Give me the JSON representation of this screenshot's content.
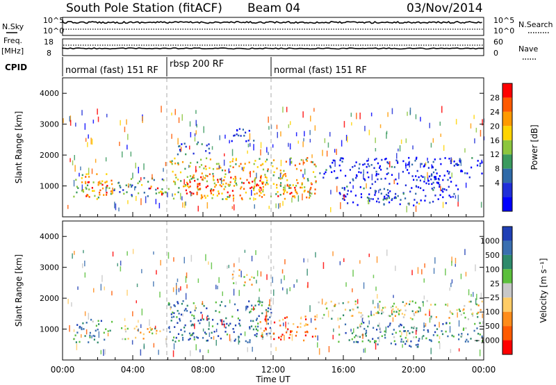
{
  "header": {
    "station": "South Pole Station (fitACF)",
    "beam": "Beam 04",
    "date": "03/Nov/2014"
  },
  "top_panels": {
    "nsky_label": "N.Sky",
    "nsky_ticks": [
      "10^5",
      "10^0"
    ],
    "nsearch_label": "N.Search",
    "nsearch_ticks": [
      "10^5",
      "10^0"
    ],
    "freq_label": "Freq.",
    "freq_unit": "[MHz]",
    "freq_ticks": [
      "18",
      "8"
    ],
    "nave_label": "Nave",
    "nave_ticks": [
      "60",
      "0"
    ],
    "cpid_label": "CPID",
    "cpid_segments": [
      {
        "label": "normal (fast) 151 RF",
        "start": 0,
        "end": 6
      },
      {
        "label": "rbsp 200 RF",
        "start": 6,
        "end": 12
      },
      {
        "label": "normal (fast) 151 RF",
        "start": 12,
        "end": 24
      }
    ]
  },
  "chart_data": [
    {
      "type": "heatmap",
      "name": "power",
      "ylabel": "Slant Range [km]",
      "yticks": [
        "1000",
        "2000",
        "3000",
        "4000"
      ],
      "ylim": [
        0,
        4500
      ],
      "xlim": [
        0,
        24
      ],
      "colorbar_label": "Power [dB]",
      "colorbar_ticks": [
        "28",
        "24",
        "20",
        "16",
        "12",
        "8",
        "4"
      ],
      "colorbar_colors": [
        "#ff0000",
        "#ff5a00",
        "#ff9a00",
        "#ffd400",
        "#8cc63e",
        "#3a9a5e",
        "#2f6aa8",
        "#1f2ed8",
        "#0000ff"
      ],
      "blobs": [
        {
          "x0": 0.6,
          "x1": 2.8,
          "y0": 550,
          "y1": 1400,
          "level": 0.6
        },
        {
          "x0": 1.0,
          "x1": 2.6,
          "y0": 650,
          "y1": 1150,
          "level": 0.85
        },
        {
          "x0": 2.8,
          "x1": 5.9,
          "y0": 650,
          "y1": 1250,
          "level": 0.35
        },
        {
          "x0": 4.8,
          "x1": 5.8,
          "y0": 700,
          "y1": 1000,
          "level": 0.8
        },
        {
          "x0": 6.0,
          "x1": 14.4,
          "y0": 550,
          "y1": 1900,
          "level": 0.6
        },
        {
          "x0": 7.0,
          "x1": 11.5,
          "y0": 650,
          "y1": 1300,
          "level": 0.9
        },
        {
          "x0": 12.2,
          "x1": 14.4,
          "y0": 600,
          "y1": 1200,
          "level": 0.75
        },
        {
          "x0": 14.5,
          "x1": 23.9,
          "y0": 1250,
          "y1": 1900,
          "level": 0.12
        },
        {
          "x0": 15.5,
          "x1": 22.5,
          "y0": 350,
          "y1": 1250,
          "level": 0.15
        },
        {
          "x0": 17.3,
          "x1": 18.5,
          "y0": 400,
          "y1": 600,
          "level": 0.45
        },
        {
          "x0": 19.3,
          "x1": 20.3,
          "y0": 400,
          "y1": 600,
          "level": 0.45
        },
        {
          "x0": 9.5,
          "x1": 10.9,
          "y0": 2400,
          "y1": 2900,
          "level": 0.15
        },
        {
          "x0": 6.5,
          "x1": 8.5,
          "y0": 2000,
          "y1": 2400,
          "level": 0.2
        }
      ]
    },
    {
      "type": "heatmap",
      "name": "velocity",
      "ylabel": "Slant Range [km]",
      "yticks": [
        "1000",
        "2000",
        "3000",
        "4000"
      ],
      "ylim": [
        0,
        4500
      ],
      "xlim": [
        0,
        24
      ],
      "xticks": [
        "00:00",
        "04:00",
        "08:00",
        "12:00",
        "16:00",
        "20:00",
        "00:00"
      ],
      "xlabel": "Time UT",
      "colorbar_label": "Velocity [m s⁻¹]",
      "colorbar_ticks": [
        "1000",
        "500",
        "100",
        "25",
        "−25",
        "−100",
        "−500",
        "−1000"
      ],
      "colorbar_colors": [
        "#1f3fb5",
        "#3a6fb0",
        "#2e8a6b",
        "#5bbf3c",
        "#c8c8c8",
        "#ffcc66",
        "#ff8c1a",
        "#ff5a00",
        "#ff0000"
      ],
      "blobs": [
        {
          "x0": 0.6,
          "x1": 2.8,
          "y0": 550,
          "y1": 1300,
          "level": 0.75
        },
        {
          "x0": 3.2,
          "x1": 5.9,
          "y0": 650,
          "y1": 1100,
          "level": 0.45
        },
        {
          "x0": 6.0,
          "x1": 12.0,
          "y0": 550,
          "y1": 1900,
          "level": 0.8
        },
        {
          "x0": 11.0,
          "x1": 14.4,
          "y0": 600,
          "y1": 1400,
          "level": 0.25
        },
        {
          "x0": 14.5,
          "x1": 23.9,
          "y0": 1300,
          "y1": 1900,
          "level": 0.5
        },
        {
          "x0": 17.3,
          "x1": 20.5,
          "y0": 400,
          "y1": 600,
          "level": 0.8
        },
        {
          "x0": 15.5,
          "x1": 23.9,
          "y0": 550,
          "y1": 1200,
          "level": 0.75
        },
        {
          "x0": 9.5,
          "x1": 10.9,
          "y0": 2400,
          "y1": 2900,
          "level": 0.4
        }
      ]
    }
  ]
}
